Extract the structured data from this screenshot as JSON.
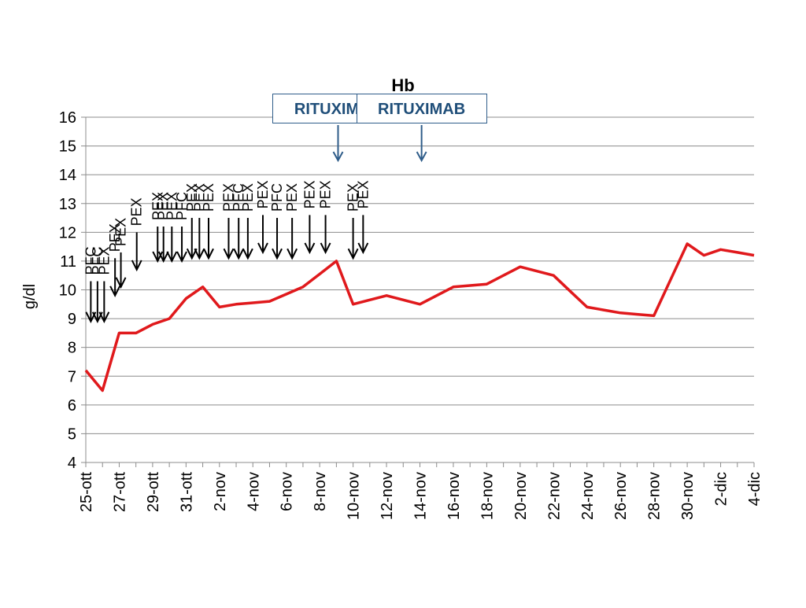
{
  "chart_data": {
    "type": "line",
    "title": "Hb",
    "ylabel": "g/dl",
    "xlabel": "",
    "ylim": [
      4,
      16
    ],
    "yticks": [
      4,
      5,
      6,
      7,
      8,
      9,
      10,
      11,
      12,
      13,
      14,
      15,
      16
    ],
    "grid": true,
    "categories": [
      "25-ott",
      "26-ott",
      "27-ott",
      "28-ott",
      "29-ott",
      "30-ott",
      "31-ott",
      "1-nov",
      "2-nov",
      "3-nov",
      "4-nov",
      "5-nov",
      "6-nov",
      "7-nov",
      "8-nov",
      "9-nov",
      "10-nov",
      "11-nov",
      "12-nov",
      "13-nov",
      "14-nov",
      "15-nov",
      "16-nov",
      "17-nov",
      "18-nov",
      "19-nov",
      "20-nov",
      "21-nov",
      "22-nov",
      "23-nov",
      "24-nov",
      "25-nov",
      "26-nov",
      "27-nov",
      "28-nov",
      "29-nov",
      "30-nov",
      "1-dic",
      "2-dic",
      "3-dic",
      "4-dic"
    ],
    "tick_labels": [
      "25-ott",
      "27-ott",
      "29-ott",
      "31-ott",
      "2-nov",
      "4-nov",
      "6-nov",
      "8-nov",
      "10-nov",
      "12-nov",
      "14-nov",
      "16-nov",
      "18-nov",
      "20-nov",
      "22-nov",
      "24-nov",
      "26-nov",
      "28-nov",
      "30-nov",
      "2-dic",
      "4-dic"
    ],
    "series": [
      {
        "color": "#e0191c",
        "points": [
          {
            "x": "25-ott",
            "y": 7.2
          },
          {
            "x": "25-ott",
            "y": 6.5,
            "offset": 1
          },
          {
            "x": "26-ott",
            "y": 8.5,
            "offset": 0.5
          },
          {
            "x": "27-ott",
            "y": 8.5,
            "offset": 1
          },
          {
            "x": "28-ott",
            "y": 8.8,
            "offset": 1.5
          },
          {
            "x": "29-ott",
            "y": 9.0,
            "offset": 2
          },
          {
            "x": "30-ott",
            "y": 9.7,
            "offset": 2.5
          },
          {
            "x": "31-ott",
            "y": 10.1,
            "offset": 3
          },
          {
            "x": "1-nov",
            "y": 9.4,
            "offset": 3.5
          },
          {
            "x": "2-nov",
            "y": 9.5,
            "offset": 4
          },
          {
            "x": "4-nov",
            "y": 9.6,
            "offset": 5.5
          },
          {
            "x": "6-nov",
            "y": 10.1,
            "offset": 7
          },
          {
            "x": "8-nov",
            "y": 11.0,
            "offset": 8.5
          },
          {
            "x": "10-nov",
            "y": 9.5,
            "offset": 9.5
          },
          {
            "x": "12-nov",
            "y": 9.8,
            "offset": 11
          },
          {
            "x": "13-nov",
            "y": 9.5,
            "offset": 12
          },
          {
            "x": "16-nov",
            "y": 10.1,
            "offset": 14
          },
          {
            "x": "18-nov",
            "y": 10.2,
            "offset": 15
          },
          {
            "x": "20-nov",
            "y": 10.8,
            "offset": 16
          },
          {
            "x": "22-nov",
            "y": 10.5,
            "offset": 17
          },
          {
            "x": "24-nov",
            "y": 9.4,
            "offset": 18
          },
          {
            "x": "26-nov",
            "y": 9.2,
            "offset": 19
          },
          {
            "x": "28-nov",
            "y": 9.1,
            "offset": 20
          },
          {
            "x": "30-nov",
            "y": 11.6,
            "offset": 21
          },
          {
            "x": "1-dic",
            "y": 11.2,
            "offset": 21.5
          },
          {
            "x": "2-dic",
            "y": 11.4,
            "offset": 22
          },
          {
            "x": "4-dic",
            "y": 11.2,
            "offset": 23
          }
        ],
        "y_values": [
          7.2,
          6.5,
          8.5,
          8.5,
          8.8,
          9.0,
          9.7,
          10.1,
          9.4,
          9.5,
          9.55,
          9.6,
          9.85,
          10.1,
          10.55,
          11.0,
          9.5,
          9.65,
          9.8,
          9.65,
          9.5,
          9.8,
          10.1,
          10.15,
          10.2,
          10.5,
          10.8,
          10.65,
          10.5,
          9.95,
          9.4,
          9.3,
          9.2,
          9.15,
          9.1,
          10.35,
          11.6,
          11.2,
          11.4,
          11.3,
          11.2
        ]
      }
    ],
    "annotations": [
      {
        "label": "PFC",
        "day": 0.3,
        "y_tail": 10.3,
        "y_head": 8.9
      },
      {
        "label": "PFC",
        "day": 0.7,
        "y_tail": 10.3,
        "y_head": 8.9
      },
      {
        "label": "PEX",
        "day": 1.1,
        "y_tail": 10.3,
        "y_head": 8.9
      },
      {
        "label": "PEX",
        "day": 1.75,
        "y_tail": 11.1,
        "y_head": 9.8
      },
      {
        "label": "PEX",
        "day": 2.1,
        "y_tail": 11.3,
        "y_head": 10.1
      },
      {
        "label": "PEX",
        "day": 3.05,
        "y_tail": 12.0,
        "y_head": 10.7
      },
      {
        "label": "PEX",
        "day": 4.3,
        "y_tail": 12.2,
        "y_head": 11.0
      },
      {
        "label": "PEX",
        "day": 4.65,
        "y_tail": 12.2,
        "y_head": 11.0
      },
      {
        "label": "PEX",
        "day": 5.15,
        "y_tail": 12.2,
        "y_head": 11.0
      },
      {
        "label": "PFC",
        "day": 5.75,
        "y_tail": 12.2,
        "y_head": 11.0
      },
      {
        "label": "PEX",
        "day": 6.35,
        "y_tail": 12.5,
        "y_head": 11.1
      },
      {
        "label": "PEX",
        "day": 6.8,
        "y_tail": 12.5,
        "y_head": 11.1
      },
      {
        "label": "PEX",
        "day": 7.35,
        "y_tail": 12.5,
        "y_head": 11.1
      },
      {
        "label": "PEX",
        "day": 8.55,
        "y_tail": 12.5,
        "y_head": 11.1
      },
      {
        "label": "PFC",
        "day": 9.15,
        "y_tail": 12.5,
        "y_head": 11.1
      },
      {
        "label": "PEX",
        "day": 9.7,
        "y_tail": 12.5,
        "y_head": 11.1
      },
      {
        "label": "PEX",
        "day": 10.6,
        "y_tail": 12.6,
        "y_head": 11.3
      },
      {
        "label": "PFC",
        "day": 11.45,
        "y_tail": 12.5,
        "y_head": 11.1
      },
      {
        "label": "PEX",
        "day": 12.35,
        "y_tail": 12.5,
        "y_head": 11.1
      },
      {
        "label": "PEX",
        "day": 13.4,
        "y_tail": 12.6,
        "y_head": 11.3
      },
      {
        "label": "PEX",
        "day": 14.35,
        "y_tail": 12.6,
        "y_head": 11.3
      },
      {
        "label": "PEX",
        "day": 16.0,
        "y_tail": 12.5,
        "y_head": 11.1
      },
      {
        "label": "PEX",
        "day": 16.6,
        "y_tail": 12.6,
        "y_head": 11.3
      }
    ],
    "rituximab": [
      {
        "label": "RITUXIMAB",
        "day": 15.1
      },
      {
        "label": "RITUXIMAB",
        "day": 20.1
      }
    ]
  }
}
